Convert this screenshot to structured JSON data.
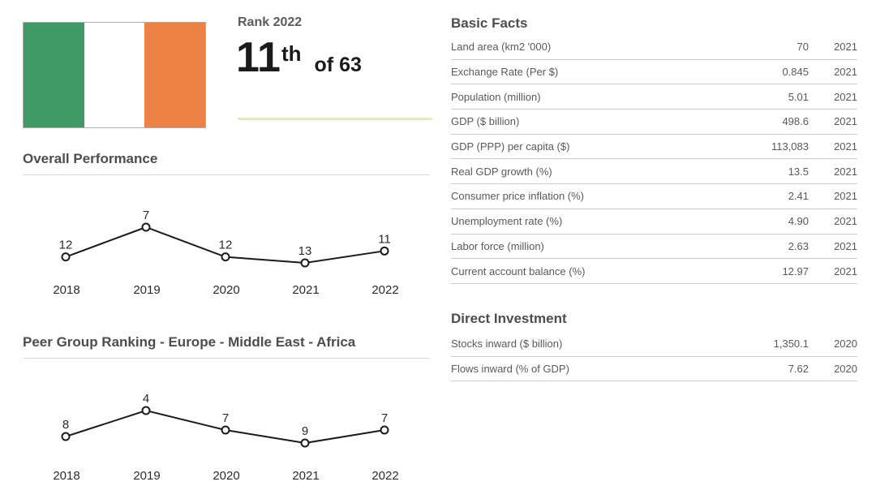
{
  "flag": {
    "name": "Ireland flag",
    "stripe_colors": [
      "#3f9a65",
      "#ffffff",
      "#ed8146"
    ],
    "border_color": "#adadad"
  },
  "rank": {
    "label": "Rank 2022",
    "value": "11",
    "ordinal_suffix": "th",
    "of_text": "of 63",
    "divider_color": "#e6e9bd"
  },
  "chart_data": [
    {
      "type": "line",
      "title": "Overall Performance",
      "categories": [
        "2018",
        "2019",
        "2020",
        "2021",
        "2022"
      ],
      "values": [
        12,
        7,
        12,
        13,
        11
      ],
      "value_labels": true,
      "axis_inverted": true,
      "grid": false,
      "line_color": "#1b1b1b",
      "marker": "open-circle"
    },
    {
      "type": "line",
      "title": "Peer Group Ranking - Europe - Middle East - Africa",
      "categories": [
        "2018",
        "2019",
        "2020",
        "2021",
        "2022"
      ],
      "values": [
        8,
        4,
        7,
        9,
        7
      ],
      "value_labels": true,
      "axis_inverted": true,
      "grid": false,
      "line_color": "#1b1b1b",
      "marker": "open-circle"
    }
  ],
  "tables": [
    {
      "title": "Basic Facts",
      "rows": [
        {
          "label": "Land area (km2 '000)",
          "value": "70",
          "year": "2021"
        },
        {
          "label": "Exchange Rate (Per $)",
          "value": "0.845",
          "year": "2021"
        },
        {
          "label": "Population (million)",
          "value": "5.01",
          "year": "2021"
        },
        {
          "label": "GDP ($ billion)",
          "value": "498.6",
          "year": "2021"
        },
        {
          "label": "GDP (PPP) per capita ($)",
          "value": "113,083",
          "year": "2021"
        },
        {
          "label": "Real GDP growth (%)",
          "value": "13.5",
          "year": "2021"
        },
        {
          "label": "Consumer price inflation (%)",
          "value": "2.41",
          "year": "2021"
        },
        {
          "label": "Unemployment rate (%)",
          "value": "4.90",
          "year": "2021"
        },
        {
          "label": "Labor force (million)",
          "value": "2.63",
          "year": "2021"
        },
        {
          "label": "Current account balance (%)",
          "value": "12.97",
          "year": "2021"
        }
      ]
    },
    {
      "title": "Direct Investment",
      "rows": [
        {
          "label": "Stocks inward ($ billion)",
          "value": "1,350.1",
          "year": "2020"
        },
        {
          "label": "Flows inward (% of GDP)",
          "value": "7.62",
          "year": "2020"
        }
      ]
    }
  ],
  "colors": {
    "heading": "#4d4d4d",
    "table_text": "#595959",
    "row_border": "#cccccc",
    "chart_text": "#2b2b2b",
    "chart_line": "#1b1b1b"
  }
}
